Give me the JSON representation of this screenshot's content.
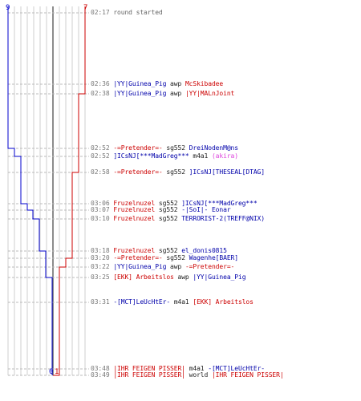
{
  "scores": {
    "blue_start": "9",
    "red_start": "7",
    "blue_end": "0",
    "red_end": "1",
    "blue_color": "#0000cc",
    "red_color": "#cc0000"
  },
  "events": [
    {
      "time": "02:17",
      "parts": [
        {
          "text": "round started",
          "c": "gray"
        }
      ]
    },
    {
      "time": "02:36",
      "parts": [
        {
          "text": "|YY|Guinea_Pig",
          "c": "blue"
        },
        {
          "text": " awp ",
          "c": "dark"
        },
        {
          "text": "McSkibadee",
          "c": "red"
        }
      ]
    },
    {
      "time": "02:38",
      "parts": [
        {
          "text": "|YY|Guinea_Pig",
          "c": "blue"
        },
        {
          "text": " awp ",
          "c": "dark"
        },
        {
          "text": "|YY|MALnJoint",
          "c": "red"
        }
      ]
    },
    {
      "time": "02:52",
      "parts": [
        {
          "text": "-=Pretender=-",
          "c": "red"
        },
        {
          "text": " sg552 ",
          "c": "dark"
        },
        {
          "text": "DreiNodenM@ns",
          "c": "blue"
        }
      ]
    },
    {
      "time": "02:52",
      "parts": [
        {
          "text": "]ICsNJ[***MadGreg***",
          "c": "blue"
        },
        {
          "text": " m4a1 ",
          "c": "dark"
        },
        {
          "text": "(akira)",
          "c": "pink"
        }
      ]
    },
    {
      "time": "02:58",
      "parts": [
        {
          "text": "-=Pretender=-",
          "c": "red"
        },
        {
          "text": " sg552 ",
          "c": "dark"
        },
        {
          "text": "]ICsNJ[THESEAL[DTAG]",
          "c": "blue"
        }
      ]
    },
    {
      "time": "03:06",
      "parts": [
        {
          "text": "Fruzelnuzel",
          "c": "red"
        },
        {
          "text": " sg552 ",
          "c": "dark"
        },
        {
          "text": "]ICsNJ[***MadGreg***",
          "c": "blue"
        }
      ]
    },
    {
      "time": "03:07",
      "parts": [
        {
          "text": "Fruzelnuzel",
          "c": "red"
        },
        {
          "text": " sg552 ",
          "c": "dark"
        },
        {
          "text": "-|SoI|- Eonar",
          "c": "blue"
        }
      ]
    },
    {
      "time": "03:10",
      "parts": [
        {
          "text": "Fruzelnuzel",
          "c": "red"
        },
        {
          "text": " sg552 ",
          "c": "dark"
        },
        {
          "text": "TERRORIST-2(TREFF@NIX)",
          "c": "blue"
        }
      ]
    },
    {
      "time": "03:18",
      "parts": [
        {
          "text": "Fruzelnuzel",
          "c": "red"
        },
        {
          "text": " sg552 ",
          "c": "dark"
        },
        {
          "text": "el_donis0815",
          "c": "blue"
        }
      ]
    },
    {
      "time": "03:20",
      "parts": [
        {
          "text": "-=Pretender=-",
          "c": "red"
        },
        {
          "text": " sg552 ",
          "c": "dark"
        },
        {
          "text": "Wagenhe[BAER]",
          "c": "blue"
        }
      ]
    },
    {
      "time": "03:22",
      "parts": [
        {
          "text": "|YY|Guinea_Pig",
          "c": "blue"
        },
        {
          "text": " awp ",
          "c": "dark"
        },
        {
          "text": "-=Pretender=-",
          "c": "red"
        }
      ]
    },
    {
      "time": "03:25",
      "parts": [
        {
          "text": "[EKK] Arbeitslos",
          "c": "red"
        },
        {
          "text": " awp ",
          "c": "dark"
        },
        {
          "text": "|YY|Guinea_Pig",
          "c": "blue"
        }
      ]
    },
    {
      "time": "03:31",
      "parts": [
        {
          "text": "-[MCT]LeUcHtEr-",
          "c": "blue"
        },
        {
          "text": " m4a1 ",
          "c": "dark"
        },
        {
          "text": "[EKK] Arbeitslos",
          "c": "red"
        }
      ]
    },
    {
      "time": "03:48",
      "parts": [
        {
          "text": "|IHR FEIGEN PISSER|",
          "c": "red"
        },
        {
          "text": " m4a1 ",
          "c": "dark"
        },
        {
          "text": "-[MCT]LeUcHtEr-",
          "c": "blue"
        }
      ]
    },
    {
      "time": "03:49",
      "parts": [
        {
          "text": "|IHR FEIGEN PISSER|",
          "c": "red"
        },
        {
          "text": " world ",
          "c": "dark"
        },
        {
          "text": "|IHR FEIGEN PISSER|",
          "c": "red"
        }
      ]
    }
  ]
}
